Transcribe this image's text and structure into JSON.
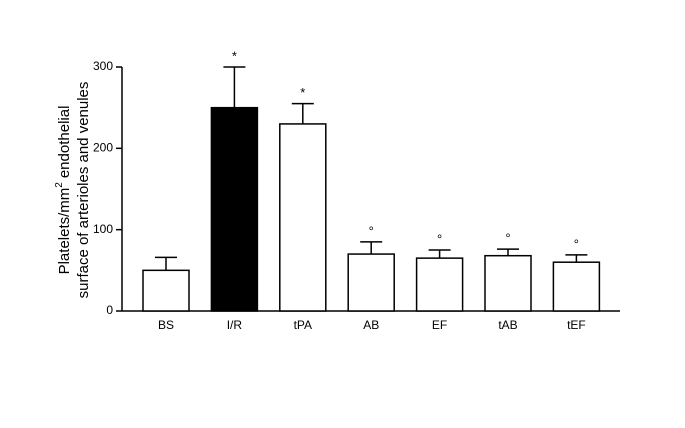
{
  "chart_data": {
    "type": "bar",
    "ylabel": {
      "line1": [
        "Platelets/mm",
        "2",
        "endothelial"
      ],
      "line2": "surface of arterioles and venules"
    },
    "categories": [
      "BS",
      "I/R",
      "tPA",
      "AB",
      "EF",
      "tAB",
      "tEF"
    ],
    "values": [
      50,
      250,
      230,
      70,
      65,
      68,
      60
    ],
    "errors": [
      16,
      50,
      25,
      15,
      10,
      8,
      9
    ],
    "annotations": [
      null,
      "*",
      "*",
      "°",
      "°",
      "°",
      "°"
    ],
    "colors": [
      "#ffffff",
      "#000000",
      "#ffffff",
      "#ffffff",
      "#ffffff",
      "#ffffff",
      "#ffffff"
    ],
    "ylim": [
      0,
      300
    ],
    "yticks": [
      0,
      100,
      200,
      300
    ],
    "grid": false
  }
}
